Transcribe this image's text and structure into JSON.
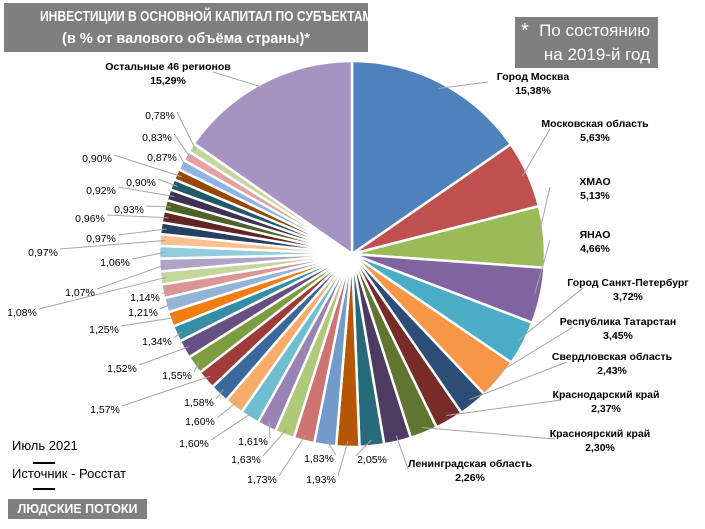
{
  "header": {
    "title_line1": "ИНВЕСТИЦИИ В ОСНОВНОЙ КАПИТАЛ ПО СУБЪЕКТАМ РФ",
    "title_line2": "(в % от валового объёма страны)*"
  },
  "note": {
    "star": "*",
    "line1": "По состоянию",
    "line2": "на 2019-й год"
  },
  "footer": {
    "date": "Июль 2021",
    "source": "Источник - Росстат",
    "brand": "ЛЮДСКИЕ ПОТОКИ"
  },
  "chart_data": {
    "type": "pie",
    "title": "ИНВЕСТИЦИИ В ОСНОВНОЙ КАПИТАЛ ПО СУБЪЕКТАМ РФ (в % от валового объёма страны)*",
    "start": "12 o'clock, clockwise",
    "slices": [
      {
        "name": "Город Москва",
        "value": 15.38,
        "label": "15,38%",
        "color": "#4F81BD"
      },
      {
        "name": "Московская область",
        "value": 5.63,
        "label": "5,63%",
        "color": "#C0504D"
      },
      {
        "name": "ХМАО",
        "value": 5.13,
        "label": "5,13%",
        "color": "#9BBB59"
      },
      {
        "name": "ЯНАО",
        "value": 4.66,
        "label": "4,66%",
        "color": "#8064A2"
      },
      {
        "name": "Город Санкт-Петербург",
        "value": 3.72,
        "label": "3,72%",
        "color": "#4BACC6"
      },
      {
        "name": "Республика Татарстан",
        "value": 3.45,
        "label": "3,45%",
        "color": "#F79646"
      },
      {
        "name": "Свердловская область",
        "value": 2.43,
        "label": "2,43%",
        "color": "#2C4D75"
      },
      {
        "name": "Краснодарский край",
        "value": 2.37,
        "label": "2,37%",
        "color": "#772C2A"
      },
      {
        "name": "Красноярский край",
        "value": 2.3,
        "label": "2,30%",
        "color": "#5F7530"
      },
      {
        "name": "Ленинградская область",
        "value": 2.26,
        "label": "2,26%",
        "color": "#4D3B62"
      },
      {
        "name": "",
        "value": 2.05,
        "label": "2,05%",
        "color": "#276A7C"
      },
      {
        "name": "",
        "value": 1.93,
        "label": "1,93%",
        "color": "#B65708"
      },
      {
        "name": "",
        "value": 1.83,
        "label": "1,83%",
        "color": "#729ACA"
      },
      {
        "name": "",
        "value": 1.73,
        "label": "1,73%",
        "color": "#CD7371"
      },
      {
        "name": "",
        "value": 1.63,
        "label": "1,63%",
        "color": "#AFC97A"
      },
      {
        "name": "",
        "value": 1.61,
        "label": "1,61%",
        "color": "#9983B5"
      },
      {
        "name": "",
        "value": 1.6,
        "label": "1,60%",
        "color": "#6FBDD1"
      },
      {
        "name": "",
        "value": 1.6,
        "label": "1,60%",
        "color": "#F9AB6B"
      },
      {
        "name": "",
        "value": 1.58,
        "label": "1,58%",
        "color": "#3A679C"
      },
      {
        "name": "",
        "value": 1.57,
        "label": "1,57%",
        "color": "#9F3B38"
      },
      {
        "name": "",
        "value": 1.55,
        "label": "1,55%",
        "color": "#7E9C40"
      },
      {
        "name": "",
        "value": 1.52,
        "label": "1,52%",
        "color": "#664F83"
      },
      {
        "name": "",
        "value": 1.34,
        "label": "1,34%",
        "color": "#358EA6"
      },
      {
        "name": "",
        "value": 1.25,
        "label": "1,25%",
        "color": "#F07C12"
      },
      {
        "name": "",
        "value": 1.21,
        "label": "1,21%",
        "color": "#95B3D7"
      },
      {
        "name": "",
        "value": 1.14,
        "label": "1,14%",
        "color": "#D99694"
      },
      {
        "name": "",
        "value": 1.08,
        "label": "1,08%",
        "color": "#C3D69B"
      },
      {
        "name": "",
        "value": 1.07,
        "label": "1,07%",
        "color": "#B3A2C7"
      },
      {
        "name": "",
        "value": 1.06,
        "label": "1,06%",
        "color": "#93CDDD"
      },
      {
        "name": "",
        "value": 0.97,
        "label": "0,97%",
        "color": "#FAC090"
      },
      {
        "name": "",
        "value": 0.97,
        "label": "0,97%",
        "color": "#254061"
      },
      {
        "name": "",
        "value": 0.96,
        "label": "0,96%",
        "color": "#632523"
      },
      {
        "name": "",
        "value": 0.93,
        "label": "0,93%",
        "color": "#4F6228"
      },
      {
        "name": "",
        "value": 0.92,
        "label": "0,92%",
        "color": "#3F3151"
      },
      {
        "name": "",
        "value": 0.9,
        "label": "0,90%",
        "color": "#215968"
      },
      {
        "name": "",
        "value": 0.9,
        "label": "0,90%",
        "color": "#974806"
      },
      {
        "name": "",
        "value": 0.87,
        "label": "0,87%",
        "color": "#8EB4E3"
      },
      {
        "name": "",
        "value": 0.83,
        "label": "0,83%",
        "color": "#E6A0A0"
      },
      {
        "name": "",
        "value": 0.78,
        "label": "0,78%",
        "color": "#C4D79B"
      },
      {
        "name": "Остальные 46 регионов",
        "value": 15.29,
        "label": "15,29%",
        "color": "#A593C2"
      }
    ]
  }
}
